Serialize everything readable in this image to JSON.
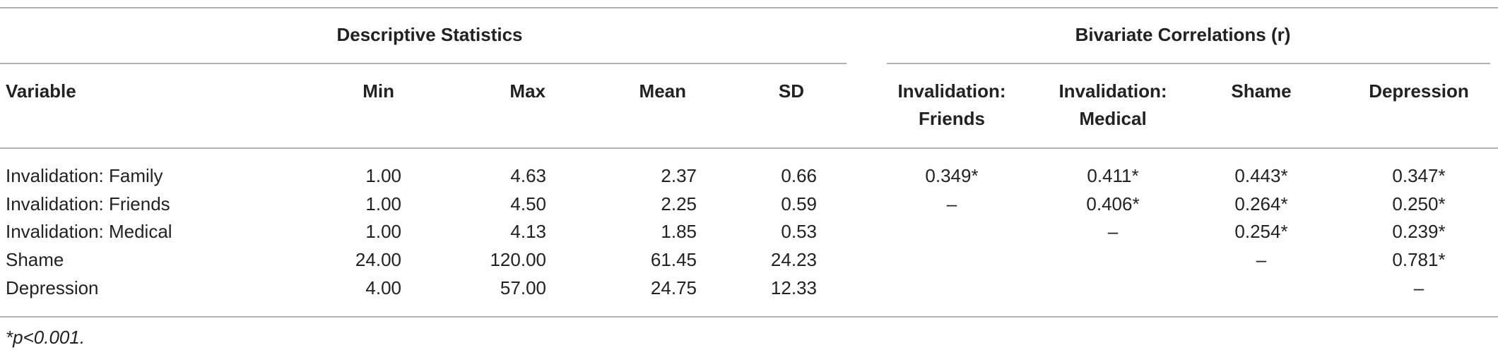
{
  "table": {
    "groups": [
      "Descriptive Statistics",
      "Bivariate Correlations (r)"
    ],
    "columns": [
      [
        "Variable"
      ],
      [
        "Min"
      ],
      [
        "Max"
      ],
      [
        "Mean"
      ],
      [
        "SD"
      ],
      [
        "Invalidation:",
        "Friends"
      ],
      [
        "Invalidation:",
        "Medical"
      ],
      [
        "Shame"
      ],
      [
        "Depression"
      ]
    ],
    "rows": [
      [
        "Invalidation: Family",
        "1.00",
        "4.63",
        "2.37",
        "0.66",
        "0.349*",
        "0.411*",
        "0.443*",
        "0.347*"
      ],
      [
        "Invalidation: Friends",
        "1.00",
        "4.50",
        "2.25",
        "0.59",
        "–",
        "0.406*",
        "0.264*",
        "0.250*"
      ],
      [
        "Invalidation: Medical",
        "1.00",
        "4.13",
        "1.85",
        "0.53",
        null,
        "–",
        "0.254*",
        "0.239*"
      ],
      [
        "Shame",
        "24.00",
        "120.00",
        "61.45",
        "24.23",
        null,
        null,
        "–",
        "0.781*"
      ],
      [
        "Depression",
        "4.00",
        "57.00",
        "24.75",
        "12.33",
        null,
        null,
        null,
        "–"
      ]
    ],
    "footnote": "*p<0.001."
  }
}
